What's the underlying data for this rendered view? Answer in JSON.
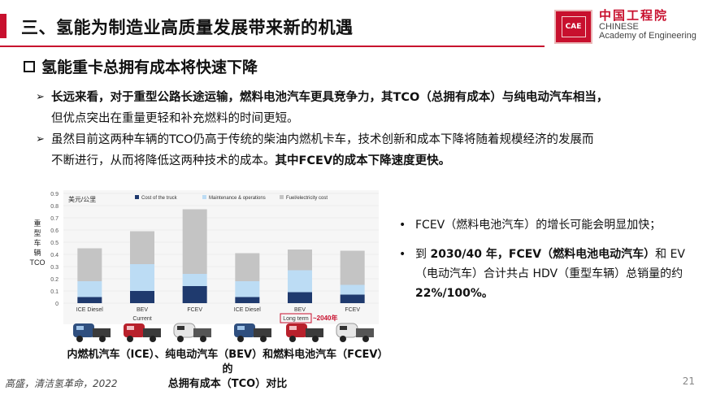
{
  "header": {
    "title": "三、氢能为制造业高质量发展带来新的机遇",
    "logo_cn": "中国工程院",
    "logo_en1": "CHINESE",
    "logo_en2": "Academy of Engineering",
    "logo_emblem": "CAE"
  },
  "subtitle": "氢能重卡总拥有成本将快速下降",
  "bullets": [
    {
      "lines": [
        "长远来看，对于重型公路长途运输，燃料电池汽车更具竞争力，其TCO（总拥有成本）与纯电动汽车相当，",
        "但优点突出在重量更轻和补充燃料的时间更短。"
      ]
    },
    {
      "line1": "虽然目前这两种车辆的TCO仍高于传统的柴油内燃机卡车，技术创新和成本下降将随着规模经济的发展而",
      "line2_plain": "不断进行，从而将降低这两种技术的成本。",
      "line2_bold": "其中FCEV的成本下降速度更快。"
    }
  ],
  "chart_data": {
    "type": "bar",
    "unit_label": "美元/公里",
    "ylabel": "重型车辆TCO",
    "ylabel_chars": [
      "重",
      "型",
      "车",
      "辆",
      "TCO"
    ],
    "ylim": [
      0,
      0.9
    ],
    "yticks": [
      "0",
      "0.1",
      "0.2",
      "0.3",
      "0.4",
      "0.5",
      "0.6",
      "0.7",
      "0.8",
      "0.9"
    ],
    "categories": [
      "ICE Diesel",
      "BEV",
      "FCEV",
      "ICE Diesel",
      "BEV",
      "FCEV"
    ],
    "groups": [
      "Current",
      "Long term"
    ],
    "group_labels": {
      "current": "Current",
      "longterm": "Long term",
      "longterm_note": "~2040年"
    },
    "series": [
      {
        "name": "Cost of the truck",
        "color": "#1f3a6e",
        "values": [
          0.05,
          0.1,
          0.14,
          0.05,
          0.09,
          0.07
        ]
      },
      {
        "name": "Maintenance & operations",
        "color": "#bcdcf4",
        "values": [
          0.13,
          0.22,
          0.1,
          0.13,
          0.18,
          0.08
        ]
      },
      {
        "name": "Fuel/electricity cost",
        "color": "#c4c4c4",
        "values": [
          0.27,
          0.27,
          0.53,
          0.23,
          0.17,
          0.28
        ]
      }
    ]
  },
  "caption": {
    "line1": "内燃机汽车（ICE）、纯电动汽车（BEV）和燃料电池汽车（FCEV）的",
    "line2": "总拥有成本（TCO）对比"
  },
  "right_bullets": {
    "b1": "FCEV（燃料电池汽车）的增长可能会明显加快；",
    "b2_pre": "到 ",
    "b2_bold1": "2030/40 年，FCEV（燃料电池电动汽车）",
    "b2_mid": "和 EV（电动汽车）合计共占 HDV（重型车辆）总销量的约 ",
    "b2_bold2": "22%/100%。"
  },
  "footer": {
    "source": "高盛，清洁氢革命，2022",
    "page": "21"
  },
  "icons": {
    "bullet_arrow": "➢",
    "list_dot": "•"
  }
}
